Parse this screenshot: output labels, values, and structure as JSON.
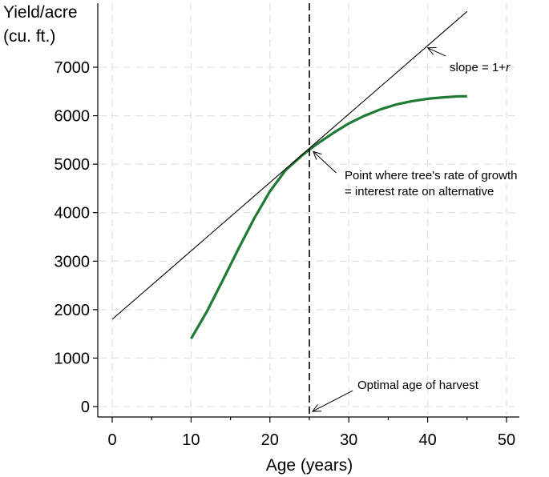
{
  "chart_data": {
    "type": "line",
    "title": "",
    "xlabel": "Age (years)",
    "ylabel_lines": [
      "Yield/acre",
      "(cu. ft.)"
    ],
    "xlim": [
      0,
      50
    ],
    "ylim": [
      0,
      8000
    ],
    "x_ticks": [
      0,
      10,
      20,
      30,
      40,
      50
    ],
    "x_minor_ticks": [
      5,
      15,
      25,
      35,
      45
    ],
    "y_ticks": [
      0,
      1000,
      2000,
      3000,
      4000,
      5000,
      6000,
      7000
    ],
    "grid": true,
    "colors": {
      "yield_curve": "#1e7a35",
      "tangent": "#000000",
      "optimal_line": "#000000"
    },
    "series": [
      {
        "id": "yield",
        "style": "thick-green",
        "x": [
          10,
          12,
          14,
          16,
          18,
          20,
          22,
          24,
          25,
          26,
          28,
          30,
          32,
          34,
          36,
          38,
          40,
          42,
          44,
          45
        ],
        "y": [
          1400,
          1960,
          2600,
          3250,
          3880,
          4440,
          4880,
          5170,
          5300,
          5420,
          5640,
          5840,
          6000,
          6130,
          6230,
          6300,
          6350,
          6380,
          6400,
          6400
        ]
      },
      {
        "id": "tangent",
        "style": "thin-black",
        "x": [
          0,
          45
        ],
        "y": [
          1800,
          8150
        ]
      }
    ],
    "vertical_line": {
      "x": 25,
      "style": "dashed"
    },
    "annotations": [
      {
        "id": "slope",
        "lines": [
          "slope = 1+",
          "r"
        ],
        "point_x": 40,
        "point_y": 7400
      },
      {
        "id": "tangency",
        "lines": [
          "Point where tree's rate of growth",
          "= interest rate on alternative"
        ],
        "point_x": 25.5,
        "point_y": 5260
      },
      {
        "id": "optimal",
        "lines": [
          "Optimal age of harvest"
        ],
        "point_x": 25.4,
        "point_y": -100
      }
    ]
  }
}
